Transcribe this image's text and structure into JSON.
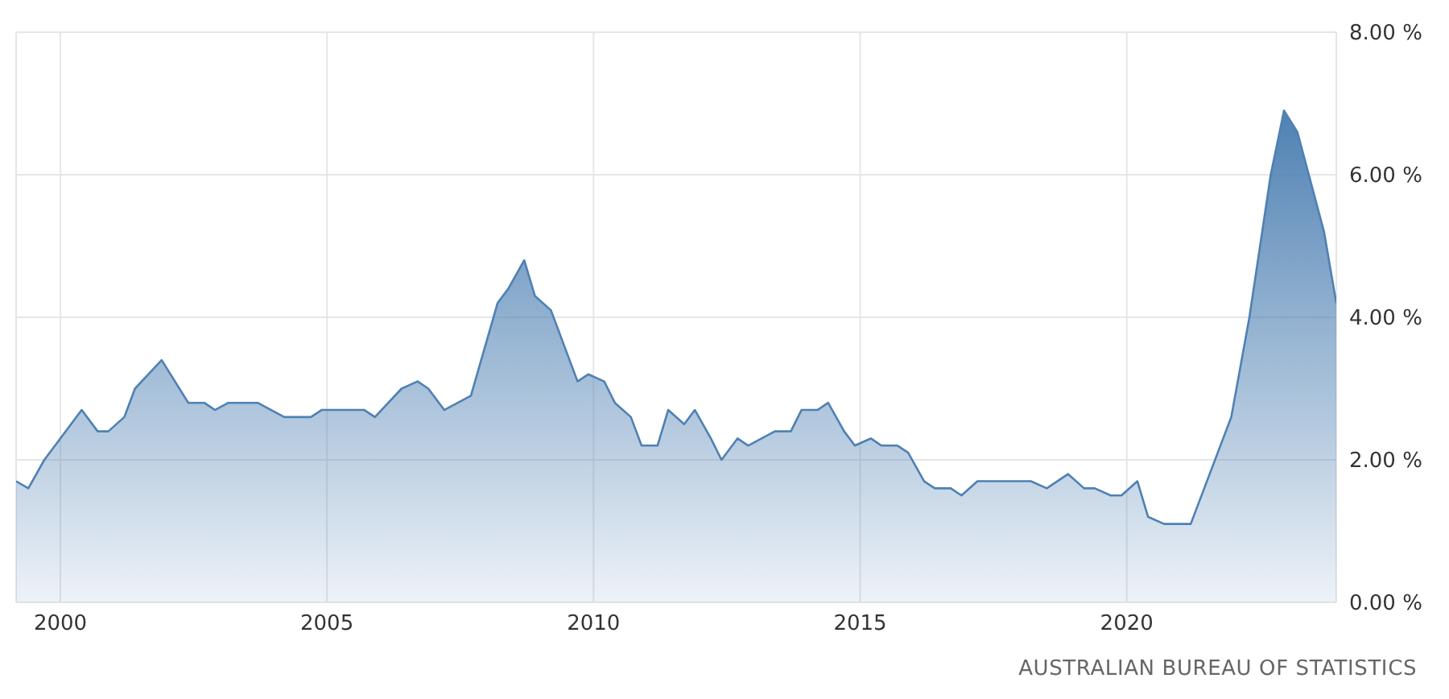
{
  "chart_data": {
    "type": "area",
    "x": [
      1999.17,
      1999.4,
      1999.7,
      2000.0,
      2000.4,
      2000.7,
      2000.9,
      2001.2,
      2001.4,
      2001.9,
      2002.4,
      2002.7,
      2002.9,
      2003.15,
      2003.7,
      2004.2,
      2004.7,
      2004.9,
      2005.7,
      2005.9,
      2006.4,
      2006.7,
      2006.9,
      2007.2,
      2007.7,
      2008.2,
      2008.4,
      2008.7,
      2008.9,
      2009.2,
      2009.7,
      2009.9,
      2010.2,
      2010.4,
      2010.7,
      2010.9,
      2011.2,
      2011.4,
      2011.7,
      2011.9,
      2012.2,
      2012.4,
      2012.7,
      2012.9,
      2013.4,
      2013.7,
      2013.9,
      2014.2,
      2014.4,
      2014.7,
      2014.9,
      2015.2,
      2015.4,
      2015.7,
      2015.9,
      2016.2,
      2016.4,
      2016.7,
      2016.9,
      2017.2,
      2018.2,
      2018.5,
      2018.9,
      2019.2,
      2019.4,
      2019.7,
      2019.9,
      2020.2,
      2020.4,
      2020.7,
      2021.2,
      2021.96,
      2022.3,
      2022.7,
      2022.95,
      2023.2,
      2023.7,
      2023.93
    ],
    "series": [
      {
        "color": "#4f81b3",
        "values": [
          1.7,
          1.6,
          2.0,
          2.3,
          2.7,
          2.4,
          2.4,
          2.6,
          3.0,
          3.4,
          2.8,
          2.8,
          2.7,
          2.8,
          2.8,
          2.6,
          2.6,
          2.7,
          2.7,
          2.6,
          3.0,
          3.1,
          3.0,
          2.7,
          2.9,
          4.2,
          4.4,
          4.8,
          4.3,
          4.1,
          3.1,
          3.2,
          3.1,
          2.8,
          2.6,
          2.2,
          2.2,
          2.7,
          2.5,
          2.7,
          2.3,
          2.0,
          2.3,
          2.2,
          2.4,
          2.4,
          2.7,
          2.7,
          2.8,
          2.4,
          2.2,
          2.3,
          2.2,
          2.2,
          2.1,
          1.7,
          1.6,
          1.6,
          1.5,
          1.7,
          1.7,
          1.6,
          1.8,
          1.6,
          1.6,
          1.5,
          1.5,
          1.7,
          1.2,
          1.1,
          1.1,
          2.6,
          4.0,
          6.0,
          6.9,
          6.6,
          5.2,
          4.2
        ]
      }
    ],
    "xlim": [
      1999.17,
      2023.93
    ],
    "xticks": [
      2000,
      2005,
      2010,
      2015,
      2020
    ],
    "ylim": [
      0,
      8
    ],
    "yticks": [
      {
        "value": 0,
        "label": "0.00 %"
      },
      {
        "value": 2,
        "label": "2.00 %"
      },
      {
        "value": 4,
        "label": "4.00 %"
      },
      {
        "value": 6,
        "label": "6.00 %"
      },
      {
        "value": 8,
        "label": "8.00 %"
      }
    ],
    "grid": true,
    "legend": false,
    "annotations": [
      "AUSTRALIAN BUREAU OF STATISTICS"
    ]
  }
}
